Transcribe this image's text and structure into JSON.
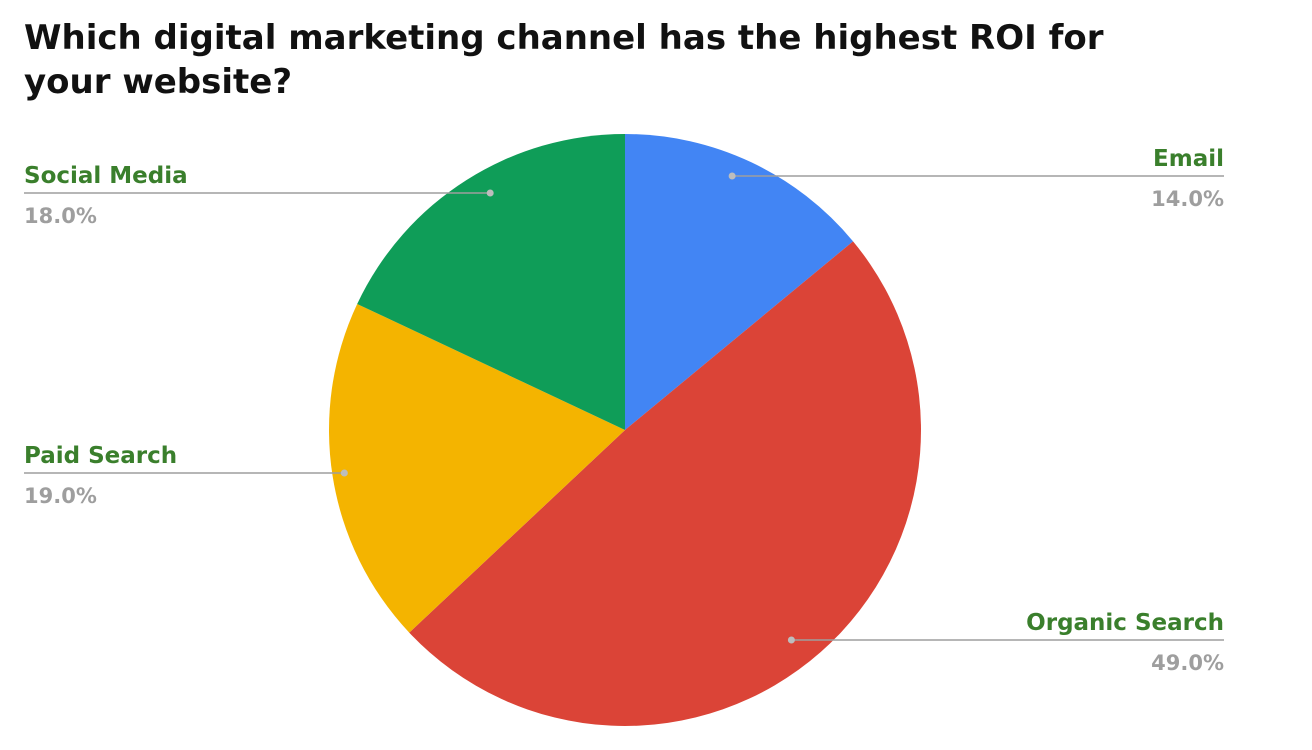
{
  "chart_data": {
    "type": "pie",
    "title": "Which digital marketing channel has the highest ROI for your website?",
    "slices": [
      {
        "label": "Email",
        "value": 14.0,
        "display": "14.0%",
        "color": "#4285F4"
      },
      {
        "label": "Organic Search",
        "value": 49.0,
        "display": "49.0%",
        "color": "#DB4437"
      },
      {
        "label": "Paid Search",
        "value": 19.0,
        "display": "19.0%",
        "color": "#F4B400"
      },
      {
        "label": "Social Media",
        "value": 18.0,
        "display": "18.0%",
        "color": "#0F9D58"
      }
    ],
    "start_angle": "12 o'clock",
    "direction": "clockwise",
    "legend": "none",
    "label_style": "callout labels with leader lines",
    "label_color": "#3A7F2C",
    "value_color": "#9E9E9E",
    "leader_color": "#9E9E9E"
  }
}
